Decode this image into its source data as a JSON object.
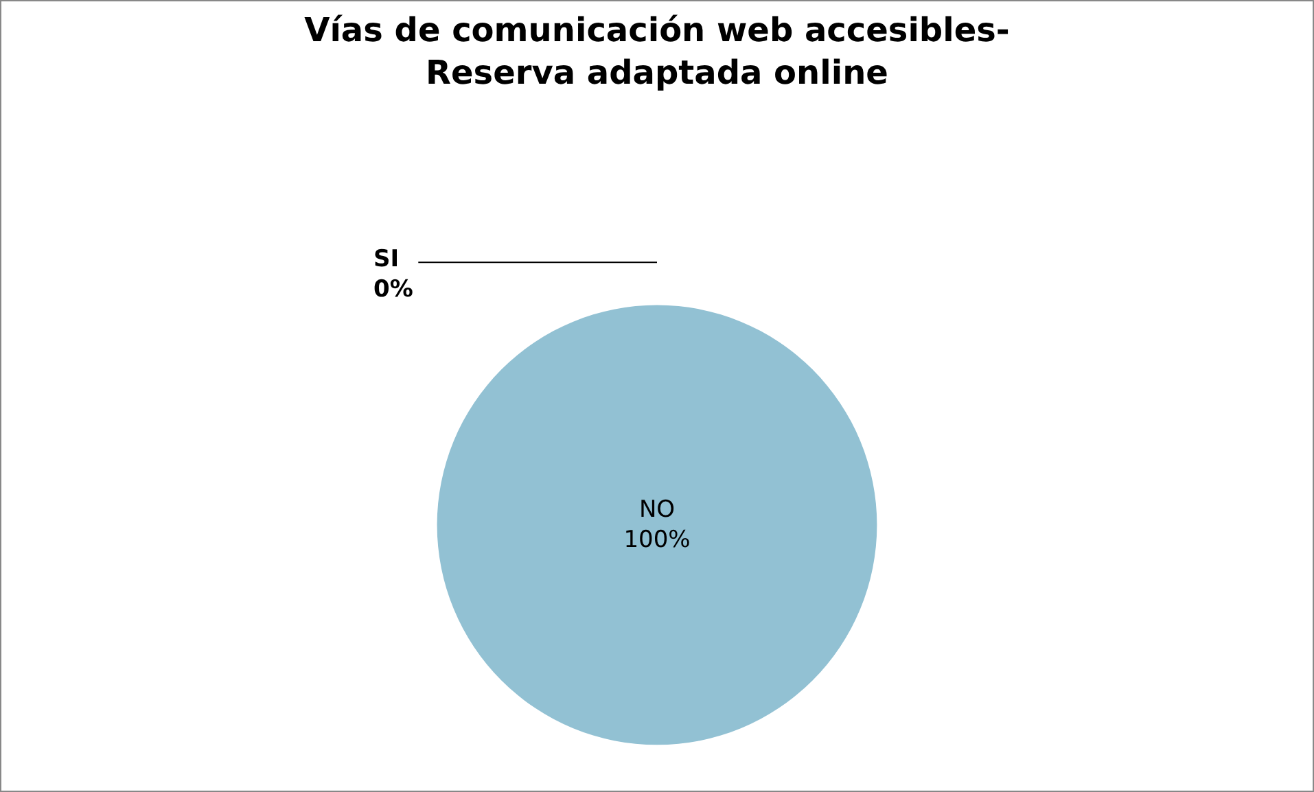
{
  "chart_data": {
    "type": "pie",
    "title": "Vías de comunicación web accesibles- Reserva adaptada online",
    "categories": [
      "SI",
      "NO"
    ],
    "values": [
      0,
      100
    ],
    "value_labels": [
      "0%",
      "100%"
    ],
    "colors": [
      "#4f81bd",
      "#92c1d3"
    ],
    "legend": false
  }
}
